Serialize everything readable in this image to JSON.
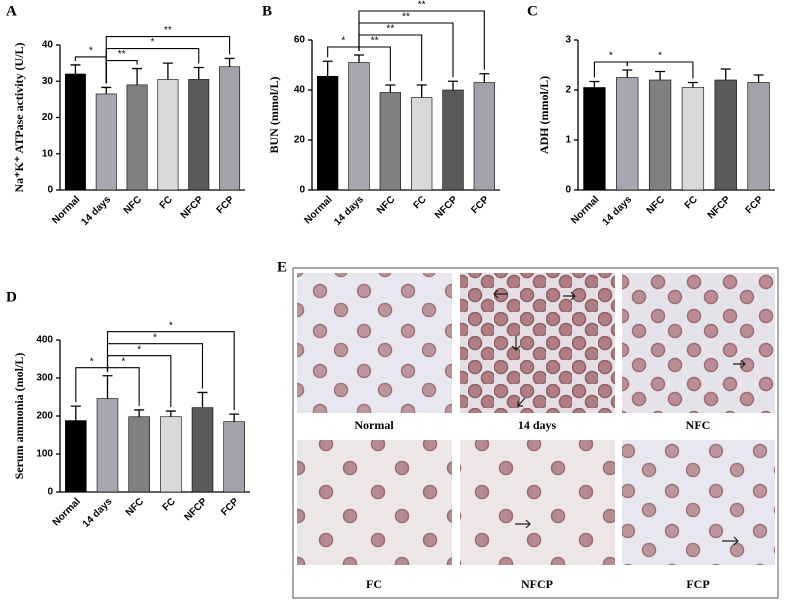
{
  "chart_data": [
    {
      "type": "bar",
      "panel_label": "A",
      "ylabel": "Na⁺K⁺ ATPase activity (U/L)",
      "categories": [
        "Normal",
        "14 days",
        "NFC",
        "FC",
        "NFCP",
        "FCP"
      ],
      "values": [
        32,
        26.5,
        29,
        30.5,
        30.5,
        34
      ],
      "errors": [
        2.5,
        1.8,
        4.5,
        4.5,
        3.3,
        2.3
      ],
      "colors": [
        "#000000",
        "#a8a6b0",
        "#808080",
        "#d9d9d9",
        "#5a5a5a",
        "#a3a2ab"
      ],
      "ylim": [
        0,
        40
      ],
      "yticks": [
        0,
        10,
        20,
        30,
        40
      ],
      "annotations": [
        {
          "from": "Normal",
          "to": "14 days",
          "label": "*"
        },
        {
          "from": "14 days",
          "to": "NFC",
          "label": "**"
        },
        {
          "from": "14 days",
          "to": "NFCP",
          "label": "*"
        },
        {
          "from": "14 days",
          "to": "FCP",
          "label": "**"
        }
      ]
    },
    {
      "type": "bar",
      "panel_label": "B",
      "ylabel": "BUN (mmol/L)",
      "categories": [
        "Normal",
        "14 days",
        "NFC",
        "FC",
        "NFCP",
        "FCP"
      ],
      "values": [
        45.5,
        51,
        39,
        37,
        40,
        43
      ],
      "errors": [
        6,
        3,
        3,
        5,
        3.5,
        3.5
      ],
      "colors": [
        "#000000",
        "#a8a6b0",
        "#808080",
        "#d9d9d9",
        "#5a5a5a",
        "#a3a2ab"
      ],
      "ylim": [
        0,
        60
      ],
      "yticks": [
        0,
        20,
        40,
        60
      ],
      "annotations": [
        {
          "from": "Normal",
          "to": "14 days",
          "label": "*"
        },
        {
          "from": "14 days",
          "to": "NFC",
          "label": "**"
        },
        {
          "from": "14 days",
          "to": "FC",
          "label": "**"
        },
        {
          "from": "14 days",
          "to": "NFCP",
          "label": "**"
        },
        {
          "from": "14 days",
          "to": "FCP",
          "label": "**"
        }
      ]
    },
    {
      "type": "bar",
      "panel_label": "C",
      "ylabel": "ADH (mmol/L)",
      "categories": [
        "Normal",
        "14 days",
        "NFC",
        "FC",
        "NFCP",
        "FCP"
      ],
      "values": [
        2.05,
        2.25,
        2.2,
        2.05,
        2.2,
        2.15
      ],
      "errors": [
        0.12,
        0.15,
        0.17,
        0.1,
        0.22,
        0.15
      ],
      "colors": [
        "#000000",
        "#a8a6b0",
        "#808080",
        "#d9d9d9",
        "#5a5a5a",
        "#a3a2ab"
      ],
      "ylim": [
        0,
        3
      ],
      "yticks": [
        0,
        1,
        2,
        3
      ],
      "annotations": [
        {
          "from": "Normal",
          "to": "14 days",
          "label": "*"
        },
        {
          "from": "14 days",
          "to": "FC",
          "label": "*"
        }
      ]
    },
    {
      "type": "bar",
      "panel_label": "D",
      "ylabel": "Serum ammonia (mol/L)",
      "categories": [
        "Normal",
        "14 days",
        "NFC",
        "FC",
        "NFCP",
        "FCP"
      ],
      "values": [
        188,
        246,
        198,
        198,
        222,
        185
      ],
      "errors": [
        38,
        60,
        18,
        15,
        40,
        20
      ],
      "colors": [
        "#000000",
        "#a8a6b0",
        "#808080",
        "#d9d9d9",
        "#5a5a5a",
        "#a3a2ab"
      ],
      "ylim": [
        0,
        400
      ],
      "yticks": [
        0,
        100,
        200,
        300,
        400
      ],
      "annotations": [
        {
          "from": "Normal",
          "to": "14 days",
          "label": "*"
        },
        {
          "from": "14 days",
          "to": "NFC",
          "label": "*"
        },
        {
          "from": "14 days",
          "to": "FC",
          "label": "*"
        },
        {
          "from": "14 days",
          "to": "NFCP",
          "label": "*"
        },
        {
          "from": "14 days",
          "to": "FCP",
          "label": "*"
        }
      ]
    }
  ],
  "images": {
    "panel_label": "E",
    "captions": [
      "Normal",
      "14 days",
      "NFC",
      "FC",
      "NFCP",
      "FCP"
    ]
  }
}
